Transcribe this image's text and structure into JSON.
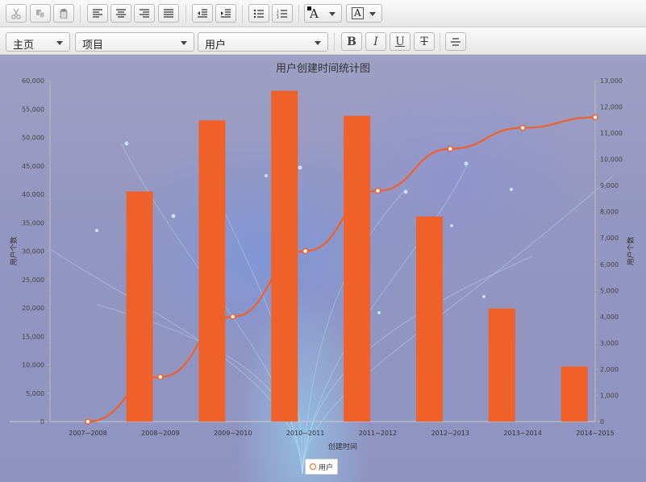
{
  "toolbar1": {
    "buttons": [
      "cut-icon",
      "copy-icon",
      "paste-icon",
      "align-left-icon",
      "align-center-icon",
      "align-right-icon",
      "align-justify-icon",
      "outdent-icon",
      "indent-icon",
      "bullet-list-icon",
      "numbered-list-icon",
      "font-color-icon",
      "highlight-color-icon"
    ],
    "font_color_glyph": "A",
    "highlight_glyph": "A"
  },
  "toolbar2": {
    "select_home": "主页",
    "select_project": "项目",
    "select_user": "用户",
    "bold": "B",
    "italic": "I",
    "underline": "U",
    "strike": "T"
  },
  "chart_data": {
    "type": "bar",
    "title": "用户创建时间统计图",
    "xlabel": "创建时间",
    "ylabel_left": "用户个数",
    "ylabel_right": "用户个数",
    "categories": [
      "2007~2008",
      "2008~2009",
      "2009~2010",
      "2010~2011",
      "2011~2012",
      "2012~2013",
      "2013~2014",
      "2014~2015"
    ],
    "series": [
      {
        "name": "用户",
        "type": "bar",
        "axis": "left",
        "values": [
          0,
          40500,
          53000,
          58200,
          53800,
          36100,
          19900,
          9700
        ]
      },
      {
        "name": "用户",
        "type": "line",
        "axis": "right",
        "values": [
          0,
          1700,
          4000,
          6500,
          8800,
          10400,
          11200,
          11600
        ]
      }
    ],
    "ylim_left": [
      0,
      60000
    ],
    "yticks_left": [
      "0",
      "5,000",
      "10,000",
      "15,000",
      "20,000",
      "25,000",
      "30,000",
      "35,000",
      "40,000",
      "45,000",
      "50,000",
      "55,000",
      "60,000"
    ],
    "ylim_right": [
      0,
      13000
    ],
    "yticks_right": [
      "0",
      "1,000",
      "2,000",
      "3,000",
      "4,000",
      "5,000",
      "6,000",
      "7,000",
      "8,000",
      "9,000",
      "10,000",
      "11,000",
      "12,000",
      "13,000"
    ],
    "legend": [
      "用户"
    ],
    "legend_position": "bottom",
    "colors": {
      "bar": "#f0612a",
      "line": "#f0612a"
    }
  }
}
